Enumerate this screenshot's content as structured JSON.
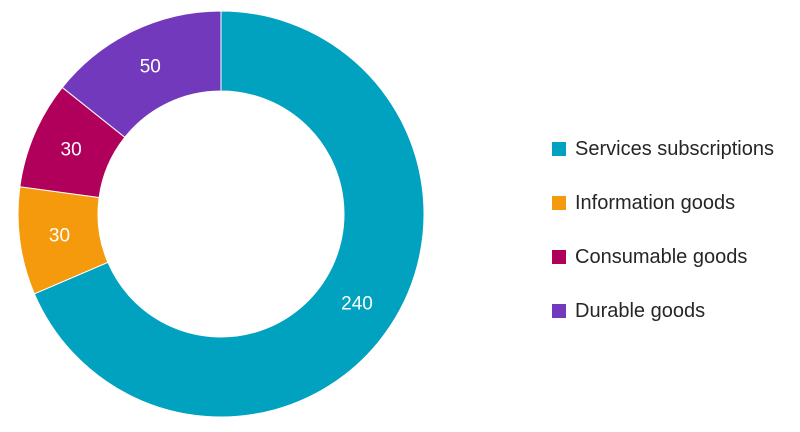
{
  "chart_data": {
    "type": "pie",
    "variant": "donut",
    "title": "",
    "categories": [
      "Services subscriptions",
      "Information goods",
      "Consumable goods",
      "Durable goods"
    ],
    "values": [
      240,
      30,
      30,
      50
    ],
    "data_labels": [
      "240",
      "30",
      "30",
      "50"
    ],
    "colors": [
      "#00A2BF",
      "#F59A0C",
      "#B1005B",
      "#7339BC"
    ],
    "legend_position": "right",
    "start_direction": "top",
    "order": "clockwise"
  }
}
